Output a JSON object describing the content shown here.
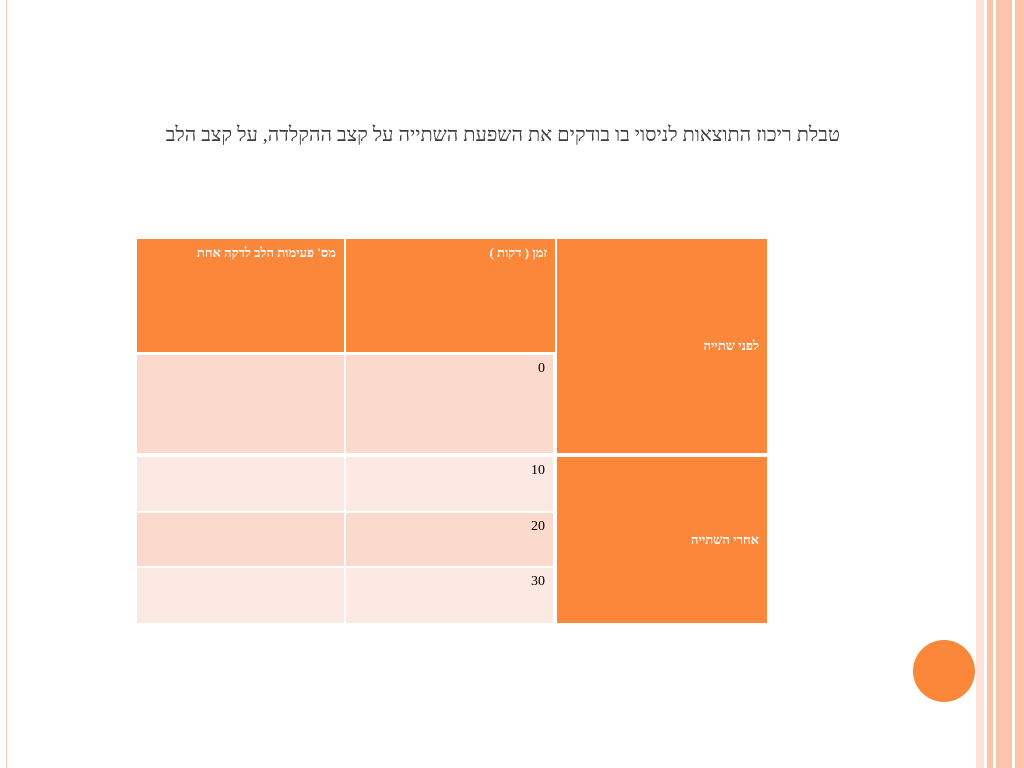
{
  "slide": {
    "title": "טבלת ריכוז התוצאות לניסוי בו בודקים את השפעת השתייה על קצב ההקלדה, על קצב הלב"
  },
  "table": {
    "headers": {
      "heart_rate": "מס' פעימות הלב לדקה אחת",
      "time": "זמן ( דקות )"
    },
    "groups": {
      "before": "לפני שתייה",
      "after": "אחרי השתייה"
    },
    "rows": [
      {
        "time": "0",
        "heart_rate": ""
      },
      {
        "time": "10",
        "heart_rate": ""
      },
      {
        "time": "20",
        "heart_rate": ""
      },
      {
        "time": "30",
        "heart_rate": ""
      }
    ]
  },
  "colors": {
    "accent": "#fb873b",
    "row_dark": "#fcd9cd",
    "row_light": "#fde9e4",
    "stripe": "#fbc4ab"
  }
}
